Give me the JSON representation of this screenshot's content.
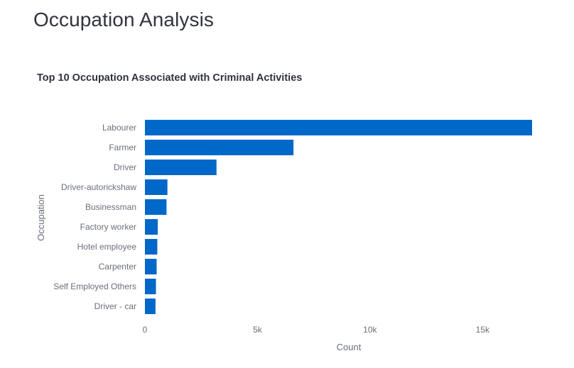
{
  "page": {
    "heading": "Occupation Analysis"
  },
  "chart_data": {
    "type": "bar",
    "orientation": "horizontal",
    "title": "Top 10 Occupation Associated with Criminal Activities",
    "xlabel": "Count",
    "ylabel": "Occupation",
    "categories": [
      "Labourer",
      "Farmer",
      "Driver",
      "Driver-autorickshaw",
      "Businessman",
      "Factory worker",
      "Hotel employee",
      "Carpenter",
      "Self Employed Others",
      "Driver - car"
    ],
    "values": [
      17200,
      6600,
      3180,
      1000,
      960,
      570,
      550,
      520,
      490,
      470
    ],
    "xlim": [
      0,
      17200
    ],
    "x_ticks": [
      {
        "value": 0,
        "label": "0"
      },
      {
        "value": 5000,
        "label": "5k"
      },
      {
        "value": 10000,
        "label": "10k"
      },
      {
        "value": 15000,
        "label": "15k"
      }
    ],
    "bar_color": "#0068c9",
    "grid": false,
    "legend": "none"
  }
}
